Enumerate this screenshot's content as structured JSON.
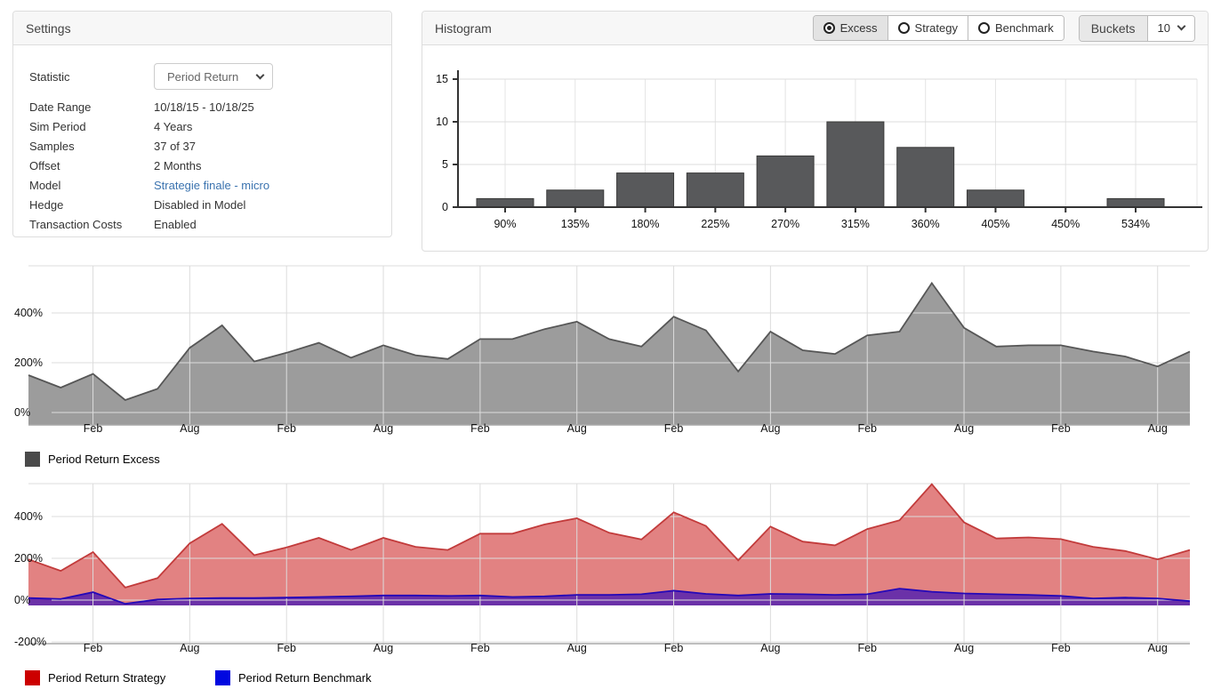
{
  "settings": {
    "title": "Settings",
    "statistic": {
      "label": "Statistic",
      "value": "Period Return"
    },
    "rows": [
      {
        "label": "Date Range",
        "value": "10/18/15 - 10/18/25",
        "kind": "text"
      },
      {
        "label": "Sim Period",
        "value": "4 Years",
        "kind": "text"
      },
      {
        "label": "Samples",
        "value": "37 of 37",
        "kind": "text"
      },
      {
        "label": "Offset",
        "value": "2 Months",
        "kind": "text"
      },
      {
        "label": "Model",
        "value": "Strategie finale - micro",
        "kind": "link"
      },
      {
        "label": "Hedge",
        "value": "Disabled in Model",
        "kind": "text"
      },
      {
        "label": "Transaction Costs",
        "value": "Enabled",
        "kind": "text"
      }
    ]
  },
  "histogram_panel": {
    "title": "Histogram",
    "radios": [
      {
        "label": "Excess",
        "selected": true
      },
      {
        "label": "Strategy",
        "selected": false
      },
      {
        "label": "Benchmark",
        "selected": false
      }
    ],
    "buckets_label": "Buckets",
    "buckets_value": "10"
  },
  "colors": {
    "excess_fill": "#9c9c9c",
    "excess_stroke": "#565656",
    "excess_legend": "#4a4a4a",
    "strategy_fill": "#e28282",
    "strategy_stroke": "#c23b3b",
    "strategy_legend": "#cc0000",
    "benchmark_fill": "rgba(50,10,185,0.68)",
    "benchmark_stroke": "#2408b8",
    "benchmark_legend": "#0008e0",
    "bar_fill": "#58595b",
    "bar_stroke": "#3a3a3a"
  },
  "chart_data": [
    {
      "id": "histogram",
      "type": "bar",
      "title": "Histogram",
      "categories": [
        "90%",
        "135%",
        "180%",
        "225%",
        "270%",
        "315%",
        "360%",
        "405%",
        "450%",
        "534%"
      ],
      "values": [
        1,
        2,
        4,
        4,
        6,
        10,
        7,
        2,
        0,
        1
      ],
      "ylim": [
        0,
        15
      ],
      "yticks": [
        0,
        5,
        10,
        15
      ],
      "grid": true,
      "legend_position": "none"
    },
    {
      "id": "excess",
      "type": "area",
      "x_tick_labels": [
        "Feb",
        "Aug",
        "Feb",
        "Aug",
        "Feb",
        "Aug",
        "Feb",
        "Aug",
        "Feb",
        "Aug",
        "Feb",
        "Aug"
      ],
      "x_tick_indices": [
        2,
        5,
        8,
        11,
        14,
        17,
        20,
        23,
        26,
        29,
        32,
        35
      ],
      "yticks": [
        0,
        200,
        400
      ],
      "ytick_labels": [
        "0%",
        "200%",
        "400%"
      ],
      "ylim": [
        -50,
        585
      ],
      "grid": true,
      "legend_position": "bottom-left",
      "series": [
        {
          "name": "Period Return Excess",
          "values": [
            150,
            100,
            155,
            50,
            95,
            260,
            350,
            205,
            240,
            280,
            220,
            270,
            230,
            215,
            295,
            295,
            335,
            365,
            295,
            265,
            385,
            330,
            165,
            325,
            250,
            235,
            310,
            325,
            520,
            340,
            265,
            270,
            270,
            245,
            225,
            185,
            245
          ]
        }
      ]
    },
    {
      "id": "strategy_benchmark",
      "type": "area",
      "x_tick_labels": [
        "Feb",
        "Aug",
        "Feb",
        "Aug",
        "Feb",
        "Aug",
        "Feb",
        "Aug",
        "Feb",
        "Aug",
        "Feb",
        "Aug"
      ],
      "x_tick_indices": [
        2,
        5,
        8,
        11,
        14,
        17,
        20,
        23,
        26,
        29,
        32,
        35
      ],
      "yticks": [
        -200,
        0,
        200,
        400
      ],
      "ytick_labels": [
        "-200%",
        "0%",
        "200%",
        "400%"
      ],
      "ylim": [
        -290,
        565
      ],
      "grid": true,
      "legend_position": "bottom-left",
      "series": [
        {
          "name": "Period Return Strategy",
          "values": [
            195,
            140,
            230,
            60,
            105,
            272,
            365,
            215,
            252,
            298,
            240,
            298,
            255,
            240,
            318,
            318,
            362,
            392,
            322,
            290,
            420,
            355,
            190,
            352,
            280,
            262,
            340,
            382,
            555,
            372,
            295,
            300,
            292,
            255,
            235,
            195,
            240
          ]
        },
        {
          "name": "Period Return Benchmark",
          "values": [
            10,
            5,
            38,
            -18,
            3,
            8,
            10,
            10,
            12,
            15,
            18,
            22,
            22,
            20,
            22,
            15,
            18,
            25,
            25,
            28,
            45,
            30,
            22,
            30,
            28,
            25,
            28,
            55,
            40,
            32,
            28,
            25,
            20,
            8,
            12,
            8,
            -5
          ]
        }
      ]
    }
  ]
}
